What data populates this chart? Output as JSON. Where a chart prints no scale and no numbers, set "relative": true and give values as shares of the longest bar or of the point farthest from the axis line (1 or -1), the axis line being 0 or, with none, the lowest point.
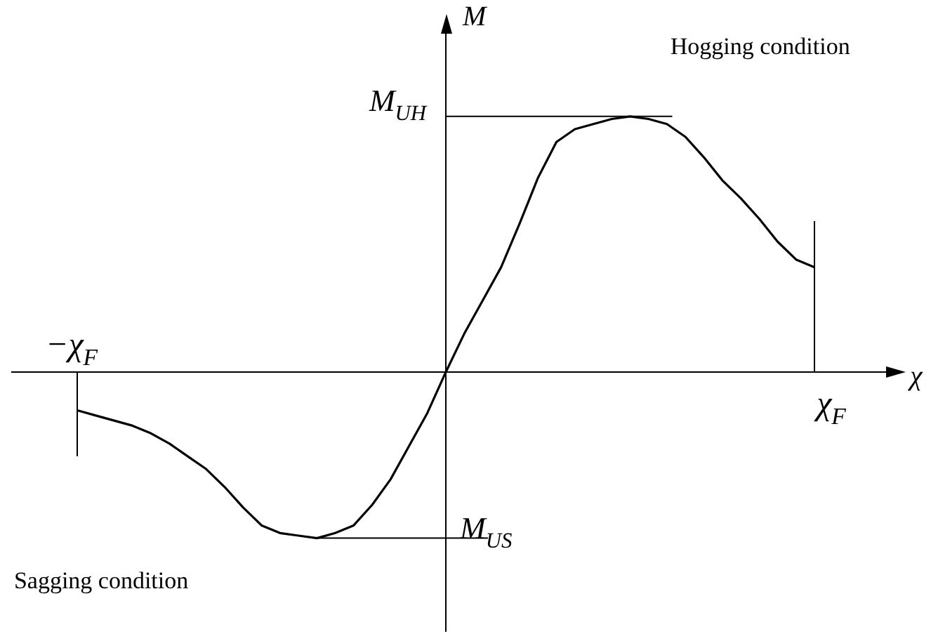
{
  "chart_data": {
    "type": "line",
    "relative": true,
    "xlabel": "χ",
    "ylabel": "M",
    "categories": [
      null,
      null,
      null,
      null,
      null,
      null,
      null,
      null,
      null,
      null,
      null,
      null,
      null,
      null,
      null,
      null,
      null,
      null,
      null,
      null,
      null,
      null,
      null,
      null,
      null,
      null,
      null,
      null,
      null,
      null,
      null,
      null,
      null,
      null,
      null,
      null,
      null,
      null,
      null,
      null,
      null
    ],
    "series": [
      {
        "color": "#000000",
        "values": [
          -0.15,
          -0.17,
          -0.19,
          -0.21,
          -0.24,
          -0.28,
          -0.33,
          -0.38,
          -0.45,
          -0.53,
          -0.6,
          -0.63,
          -0.64,
          -0.65,
          -0.63,
          -0.6,
          -0.52,
          -0.42,
          -0.29,
          -0.16,
          0,
          0.15,
          0.28,
          0.41,
          0.58,
          0.76,
          0.9,
          0.95,
          0.97,
          0.99,
          1,
          0.99,
          0.97,
          0.92,
          0.84,
          0.75,
          0.68,
          0.6,
          0.51,
          0.44,
          0.41
        ]
      }
    ],
    "ref_lines": [
      {
        "axis": "y",
        "value": 1,
        "label": "M$_{UH}$"
      },
      {
        "axis": "y",
        "value": -0.65,
        "label": "M$_{US}$"
      }
    ],
    "annotations": [
      "Hogging condition",
      "Sagging condition",
      "−χ$_{F}$",
      "χ$_{F}$"
    ],
    "grid": false,
    "legend": false,
    "marker": "none",
    "line_style": "solid"
  }
}
